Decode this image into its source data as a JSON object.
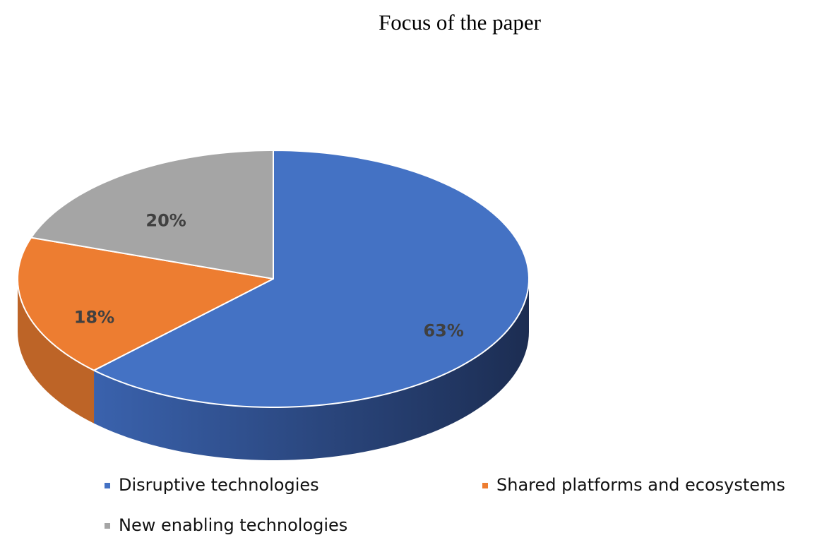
{
  "chart_data": {
    "type": "pie",
    "title": "Focus of the paper",
    "categories": [
      "Disruptive technologies",
      "Shared platforms and ecosystems",
      "New enabling technologies"
    ],
    "values": [
      63,
      18,
      20
    ],
    "value_labels": [
      "63%",
      "18%",
      "20%"
    ],
    "colors": [
      "#4472c4",
      "#ed7d31",
      "#a5a5a5"
    ],
    "legend": "bottom"
  }
}
